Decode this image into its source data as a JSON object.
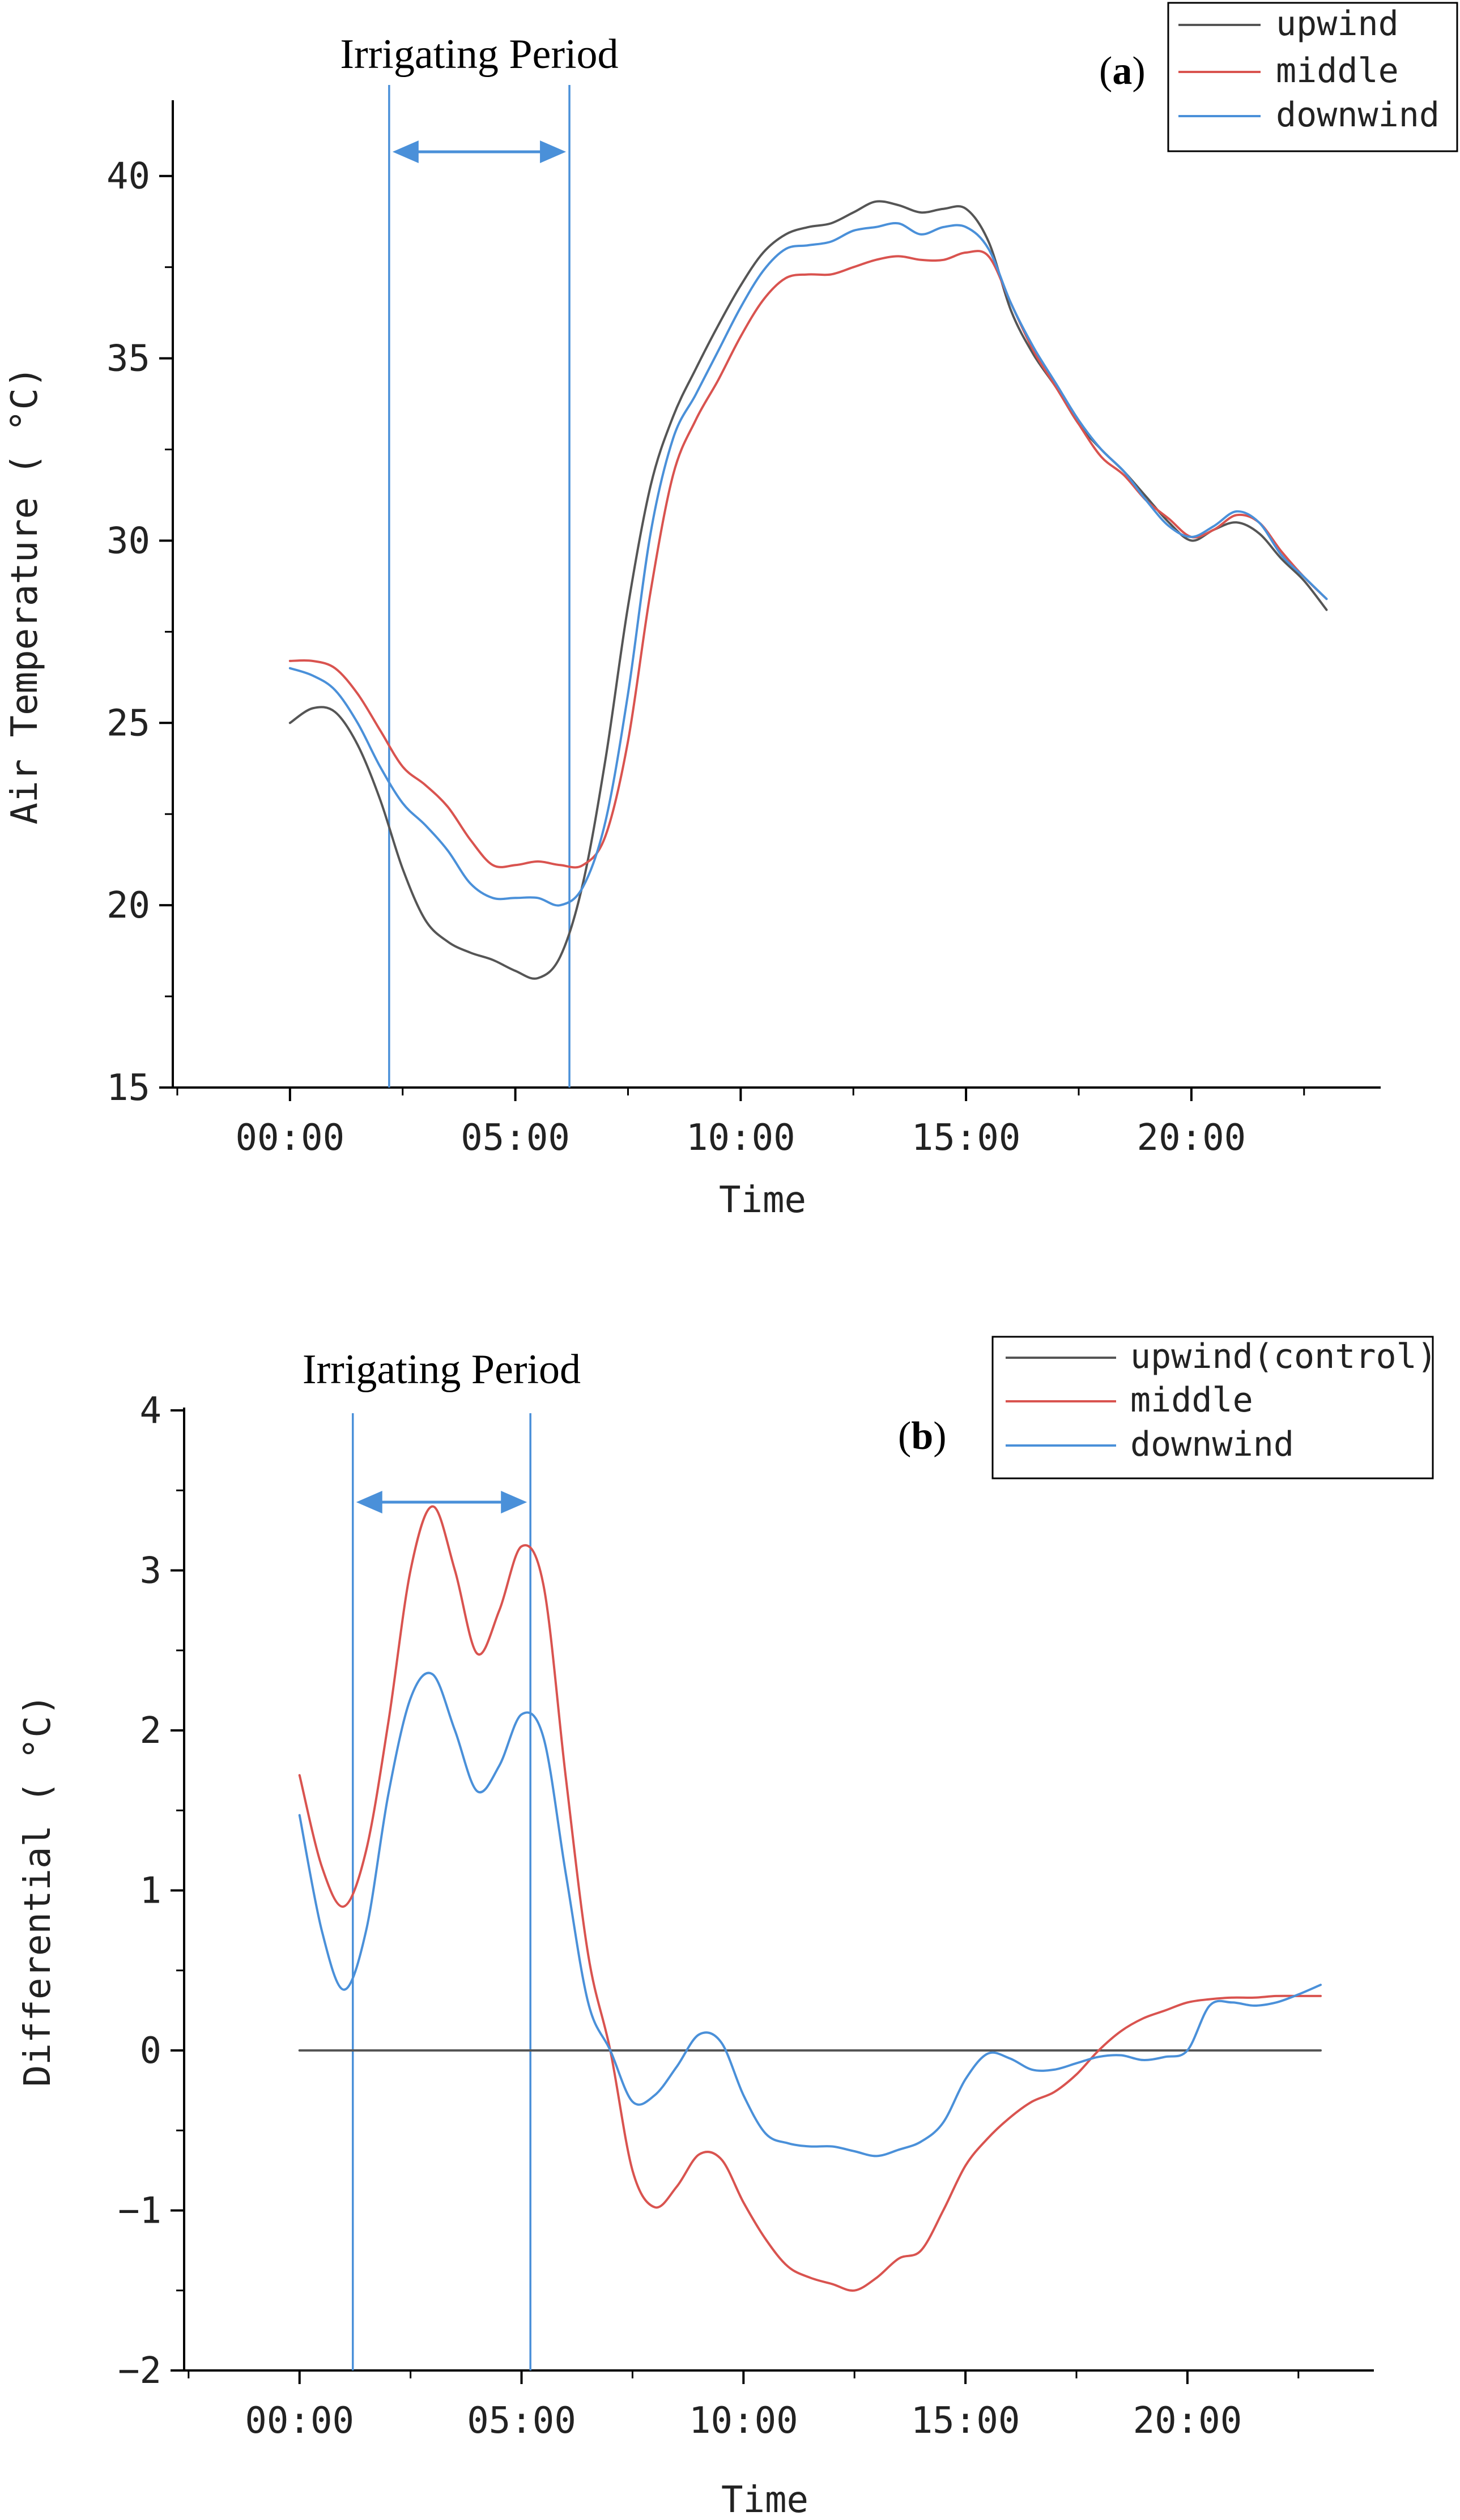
{
  "chart_data": [
    {
      "type": "line",
      "panel_label": "a",
      "title": "",
      "xlabel": "Time",
      "ylabel": "Air Temperature ( °C)",
      "xlim": [
        -2.6,
        24.2
      ],
      "ylim": [
        15,
        42
      ],
      "x_ticks": [
        0,
        5,
        10,
        15,
        20
      ],
      "x_tick_labels": [
        "00:00",
        "05:00",
        "10:00",
        "15:00",
        "20:00"
      ],
      "y_ticks": [
        15,
        20,
        25,
        30,
        35,
        40
      ],
      "y_tick_labels": [
        "15",
        "20",
        "25",
        "30",
        "35",
        "40"
      ],
      "grid": false,
      "legend_position": "top-right",
      "annotation": {
        "text": "Irrigating Period",
        "start": 2.2,
        "end": 6.2
      },
      "x": [
        0,
        0.5,
        1,
        1.5,
        2,
        2.5,
        3,
        3.5,
        4,
        4.5,
        5,
        5.5,
        6,
        6.5,
        7,
        7.5,
        8,
        8.5,
        9,
        9.5,
        10,
        10.5,
        11,
        11.5,
        12,
        12.5,
        13,
        13.5,
        14,
        14.5,
        15,
        15.5,
        16,
        16.5,
        17,
        17.5,
        18,
        18.5,
        19,
        19.5,
        20,
        20.5,
        21,
        21.5,
        22,
        22.5,
        23
      ],
      "series": [
        {
          "name": "upwind",
          "color": "#555555",
          "values": [
            25.0,
            25.4,
            25.3,
            24.4,
            22.9,
            21.0,
            19.6,
            19.0,
            18.7,
            18.5,
            18.2,
            18.0,
            18.6,
            20.6,
            24.0,
            28.2,
            31.5,
            33.4,
            34.7,
            35.9,
            37.0,
            37.9,
            38.4,
            38.6,
            38.7,
            39.0,
            39.3,
            39.2,
            39.0,
            39.1,
            39.1,
            38.2,
            36.3,
            35.1,
            34.2,
            33.2,
            32.5,
            31.9,
            31.2,
            30.5,
            30.0,
            30.3,
            30.5,
            30.2,
            29.5,
            28.9,
            28.1
          ]
        },
        {
          "name": "middle",
          "color": "#d9534f",
          "values": [
            26.7,
            26.7,
            26.5,
            25.8,
            24.8,
            23.8,
            23.3,
            22.7,
            21.8,
            21.1,
            21.1,
            21.2,
            21.1,
            21.1,
            21.9,
            24.5,
            28.6,
            31.8,
            33.3,
            34.4,
            35.6,
            36.6,
            37.2,
            37.3,
            37.3,
            37.5,
            37.7,
            37.8,
            37.7,
            37.7,
            37.9,
            37.8,
            36.5,
            35.2,
            34.2,
            33.2,
            32.3,
            31.8,
            31.1,
            30.6,
            30.1,
            30.3,
            30.7,
            30.5,
            29.7,
            29.0,
            28.4
          ]
        },
        {
          "name": "downwind",
          "color": "#4a90d9",
          "values": [
            26.5,
            26.3,
            25.9,
            25.0,
            23.8,
            22.8,
            22.2,
            21.5,
            20.6,
            20.2,
            20.2,
            20.2,
            20.0,
            20.5,
            22.3,
            25.8,
            30.2,
            32.8,
            34.0,
            35.2,
            36.4,
            37.4,
            38.0,
            38.1,
            38.2,
            38.5,
            38.6,
            38.7,
            38.4,
            38.6,
            38.6,
            38.0,
            36.5,
            35.3,
            34.3,
            33.3,
            32.5,
            31.9,
            31.1,
            30.4,
            30.1,
            30.4,
            30.8,
            30.5,
            29.6,
            29.0,
            28.4
          ]
        }
      ]
    },
    {
      "type": "line",
      "panel_label": "b",
      "title": "",
      "xlabel": "Time",
      "ylabel": "Differential ( °C)",
      "xlim": [
        -2.6,
        24.2
      ],
      "ylim": [
        -2,
        4
      ],
      "x_ticks": [
        0,
        5,
        10,
        15,
        20
      ],
      "x_tick_labels": [
        "00:00",
        "05:00",
        "10:00",
        "15:00",
        "20:00"
      ],
      "y_ticks": [
        -2,
        -1,
        0,
        1,
        2,
        3,
        4
      ],
      "y_tick_labels": [
        "−2",
        "−1",
        "0",
        "1",
        "2",
        "3",
        "4"
      ],
      "grid": false,
      "legend_position": "top-right",
      "annotation": {
        "text": "Irrigating Period",
        "start": 1.2,
        "end": 5.2
      },
      "x": [
        0,
        0.5,
        1,
        1.5,
        2,
        2.5,
        3,
        3.5,
        4,
        4.5,
        5,
        5.5,
        6,
        6.5,
        7,
        7.5,
        8,
        8.5,
        9,
        9.5,
        10,
        10.5,
        11,
        11.5,
        12,
        12.5,
        13,
        13.5,
        14,
        14.5,
        15,
        15.5,
        16,
        16.5,
        17,
        17.5,
        18,
        18.5,
        19,
        19.5,
        20,
        20.5,
        21,
        21.5,
        22,
        22.5,
        23
      ],
      "series": [
        {
          "name": "upwind(control)",
          "color": "#555555",
          "values": [
            0,
            0,
            0,
            0,
            0,
            0,
            0,
            0,
            0,
            0,
            0,
            0,
            0,
            0,
            0,
            0,
            0,
            0,
            0,
            0,
            0,
            0,
            0,
            0,
            0,
            0,
            0,
            0,
            0,
            0,
            0,
            0,
            0,
            0,
            0,
            0,
            0,
            0,
            0,
            0,
            0,
            0,
            0,
            0,
            0,
            0,
            0
          ]
        },
        {
          "name": "middle",
          "color": "#d9534f",
          "values": [
            1.72,
            1.15,
            0.9,
            1.25,
            2.05,
            3.0,
            3.4,
            3.0,
            2.48,
            2.75,
            3.15,
            2.9,
            1.7,
            0.6,
            0.0,
            -0.75,
            -0.98,
            -0.85,
            -0.65,
            -0.68,
            -0.95,
            -1.18,
            -1.35,
            -1.42,
            -1.46,
            -1.5,
            -1.42,
            -1.3,
            -1.25,
            -1.0,
            -0.72,
            -0.55,
            -0.42,
            -0.32,
            -0.26,
            -0.15,
            0.0,
            0.12,
            0.2,
            0.25,
            0.3,
            0.32,
            0.33,
            0.33,
            0.34,
            0.34,
            0.34
          ]
        },
        {
          "name": "downwind",
          "color": "#4a90d9",
          "values": [
            1.47,
            0.75,
            0.38,
            0.75,
            1.6,
            2.2,
            2.35,
            2.0,
            1.62,
            1.78,
            2.1,
            1.95,
            1.1,
            0.3,
            0.0,
            -0.32,
            -0.28,
            -0.1,
            0.1,
            0.05,
            -0.28,
            -0.52,
            -0.58,
            -0.6,
            -0.6,
            -0.63,
            -0.66,
            -0.62,
            -0.57,
            -0.45,
            -0.18,
            -0.02,
            -0.05,
            -0.12,
            -0.12,
            -0.08,
            -0.04,
            -0.03,
            -0.06,
            -0.04,
            0.0,
            0.28,
            0.3,
            0.28,
            0.3,
            0.35,
            0.41
          ]
        }
      ]
    }
  ]
}
